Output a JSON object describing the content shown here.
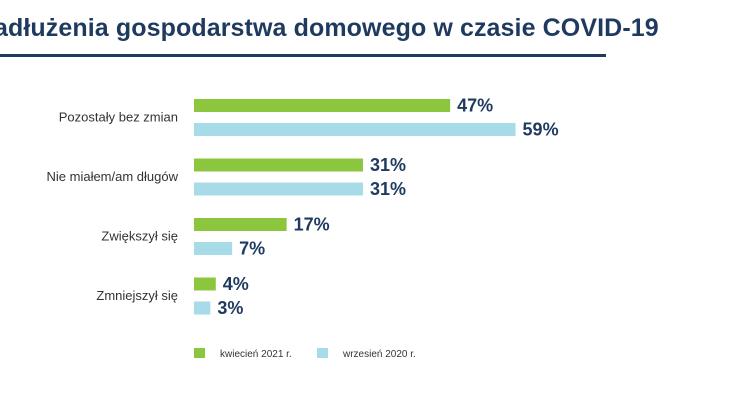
{
  "chart_data": {
    "type": "bar",
    "orientation": "horizontal",
    "title": "adłużenia gospodarstwa domowego w czasie COVID-19",
    "categories": [
      "Pozostały bez zmian",
      "Nie miałem/am długów",
      "Zwiększył się",
      "Zmniejszył się"
    ],
    "series": [
      {
        "name": "kwiecień 2021 r.",
        "color": "#8cc63f",
        "values": [
          47,
          31,
          17,
          4
        ],
        "labels": [
          "47%",
          "31%",
          "17%",
          "4%"
        ]
      },
      {
        "name": "wrzesień 2020 r.",
        "color": "#a8dbe8",
        "values": [
          59,
          31,
          7,
          3
        ],
        "labels": [
          "59%",
          "31%",
          "7%",
          "3%"
        ]
      }
    ],
    "unit": "%",
    "xlim": [
      0,
      100
    ],
    "grid": false,
    "legend_position": "bottom"
  }
}
